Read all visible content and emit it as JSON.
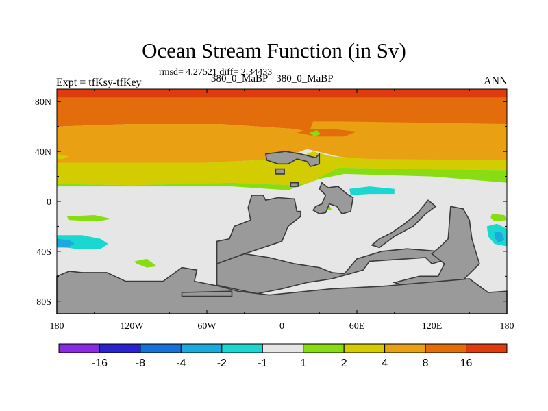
{
  "chart_data": {
    "type": "heatmap",
    "title": "Ocean Stream Function (in Sv)",
    "stats": "rmsd= 4.27521 diff= 2.34433",
    "left_label": "Expt = tfKsy-tfKey",
    "center_label": "380_0_MaBP - 380_0_MaBP",
    "right_label": "ANN",
    "x_range": [
      -180,
      180
    ],
    "y_range": [
      -90,
      90
    ],
    "x_ticks": [
      {
        "value": -180,
        "label": "180"
      },
      {
        "value": -120,
        "label": "120W"
      },
      {
        "value": -60,
        "label": "60W"
      },
      {
        "value": 0,
        "label": "0"
      },
      {
        "value": 60,
        "label": "60E"
      },
      {
        "value": 120,
        "label": "120E"
      },
      {
        "value": 180,
        "label": "180"
      }
    ],
    "y_ticks": [
      {
        "value": 80,
        "label": "80N"
      },
      {
        "value": 40,
        "label": "40N"
      },
      {
        "value": 0,
        "label": "0"
      },
      {
        "value": -40,
        "label": "40S"
      },
      {
        "value": -80,
        "label": "80S"
      }
    ],
    "colorbar": {
      "colors": [
        "#8a2be2",
        "#2a22cf",
        "#1670d8",
        "#1aaadd",
        "#1ad8d0",
        "#e6e6e6",
        "#88dd12",
        "#d2cc00",
        "#e9a013",
        "#e36d0a",
        "#e03a0f"
      ],
      "labels": [
        "-16",
        "-8",
        "-4",
        "-2",
        "-1",
        "1",
        "2",
        "4",
        "8",
        "16"
      ]
    },
    "land_color": "#9a9a9a",
    "regions": [
      {
        "name": "arctic-red-band",
        "color": "#e03a0f",
        "points": [
          [
            -180,
            90
          ],
          [
            180,
            90
          ],
          [
            180,
            83
          ],
          [
            -180,
            83
          ]
        ]
      },
      {
        "name": "north-orange-region",
        "color": "#e36d0a",
        "points": [
          [
            -180,
            83
          ],
          [
            180,
            83
          ],
          [
            180,
            38
          ],
          [
            72,
            38
          ],
          [
            40,
            44
          ],
          [
            25,
            50
          ],
          [
            10,
            58
          ],
          [
            -50,
            62
          ],
          [
            -120,
            62
          ],
          [
            -180,
            60
          ]
        ]
      },
      {
        "name": "north-amber-region",
        "color": "#e9a013",
        "points": [
          [
            -180,
            60
          ],
          [
            -120,
            62
          ],
          [
            -50,
            62
          ],
          [
            10,
            58
          ],
          [
            22,
            56
          ],
          [
            25,
            64
          ],
          [
            50,
            64
          ],
          [
            180,
            62
          ],
          [
            180,
            33
          ],
          [
            70,
            33
          ],
          [
            45,
            36
          ],
          [
            20,
            42
          ],
          [
            0,
            34
          ],
          [
            -60,
            31
          ],
          [
            -180,
            31
          ]
        ]
      },
      {
        "name": "north-yellow-region",
        "color": "#d2cc00",
        "points": [
          [
            -180,
            31
          ],
          [
            -60,
            31
          ],
          [
            0,
            34
          ],
          [
            15,
            36
          ],
          [
            25,
            40
          ],
          [
            40,
            36
          ],
          [
            70,
            34
          ],
          [
            180,
            33
          ],
          [
            180,
            25
          ],
          [
            100,
            26
          ],
          [
            45,
            27
          ],
          [
            22,
            15
          ],
          [
            8,
            13
          ],
          [
            -40,
            15
          ],
          [
            -120,
            13
          ],
          [
            -180,
            14
          ]
        ]
      },
      {
        "name": "north-green-band",
        "color": "#88dd12",
        "points": [
          [
            -180,
            14
          ],
          [
            -120,
            13
          ],
          [
            -40,
            15
          ],
          [
            8,
            13
          ],
          [
            22,
            15
          ],
          [
            45,
            27
          ],
          [
            100,
            26
          ],
          [
            180,
            25
          ],
          [
            180,
            15
          ],
          [
            120,
            20
          ],
          [
            50,
            22
          ],
          [
            30,
            18
          ],
          [
            5,
            9
          ],
          [
            -40,
            12
          ],
          [
            -180,
            12
          ]
        ]
      },
      {
        "name": "orange-notch-east",
        "color": "#e36d0a",
        "points": [
          [
            12,
            55
          ],
          [
            28,
            52
          ],
          [
            50,
            52
          ],
          [
            60,
            56
          ],
          [
            40,
            58
          ],
          [
            20,
            58
          ]
        ]
      },
      {
        "name": "yellow-notch-west",
        "color": "#d2cc00",
        "points": [
          [
            -180,
            38
          ],
          [
            -170,
            36
          ],
          [
            -175,
            34
          ],
          [
            -180,
            34
          ]
        ]
      },
      {
        "name": "green-blob-north",
        "color": "#88dd12",
        "points": [
          [
            22,
            55
          ],
          [
            28,
            57
          ],
          [
            31,
            54
          ],
          [
            26,
            52
          ]
        ]
      },
      {
        "name": "cyan-blob-africa",
        "color": "#1ad8d0",
        "points": [
          [
            54,
            10
          ],
          [
            70,
            12
          ],
          [
            90,
            10
          ],
          [
            90,
            6
          ],
          [
            70,
            6
          ],
          [
            55,
            5
          ]
        ]
      },
      {
        "name": "cyan-blob-southwest",
        "color": "#1ad8d0",
        "points": [
          [
            -180,
            -27
          ],
          [
            -160,
            -27
          ],
          [
            -145,
            -30
          ],
          [
            -139,
            -34
          ],
          [
            -145,
            -38
          ],
          [
            -165,
            -38
          ],
          [
            -180,
            -36
          ]
        ]
      },
      {
        "name": "blue-core-southwest",
        "color": "#1aaadd",
        "points": [
          [
            -180,
            -30
          ],
          [
            -170,
            -31
          ],
          [
            -166,
            -34
          ],
          [
            -172,
            -37
          ],
          [
            -180,
            -37
          ]
        ]
      },
      {
        "name": "cyan-blob-southeast",
        "color": "#1ad8d0",
        "points": [
          [
            164,
            -20
          ],
          [
            172,
            -18
          ],
          [
            180,
            -22
          ],
          [
            180,
            -36
          ],
          [
            170,
            -34
          ],
          [
            165,
            -28
          ]
        ]
      },
      {
        "name": "blue-core-southeast",
        "color": "#1aaadd",
        "points": [
          [
            170,
            -24
          ],
          [
            176,
            -25
          ],
          [
            178,
            -31
          ],
          [
            173,
            -33
          ],
          [
            170,
            -29
          ]
        ]
      },
      {
        "name": "green-blob-west-pacific",
        "color": "#88dd12",
        "points": [
          [
            -172,
            -12
          ],
          [
            -150,
            -11
          ],
          [
            -136,
            -14
          ],
          [
            -148,
            -16
          ],
          [
            -170,
            -15
          ]
        ]
      },
      {
        "name": "green-blob-south-atlantic",
        "color": "#88dd12",
        "points": [
          [
            -118,
            -48
          ],
          [
            -108,
            -46
          ],
          [
            -100,
            -52
          ],
          [
            -108,
            -53
          ],
          [
            -116,
            -50
          ]
        ]
      },
      {
        "name": "green-blob-africa-east",
        "color": "#88dd12",
        "points": [
          [
            30,
            -3
          ],
          [
            38,
            -3
          ],
          [
            40,
            -7
          ],
          [
            32,
            -7
          ]
        ]
      },
      {
        "name": "green-blob-east-pacific",
        "color": "#88dd12",
        "points": [
          [
            168,
            -10
          ],
          [
            178,
            -11
          ],
          [
            180,
            -15
          ],
          [
            170,
            -16
          ],
          [
            167,
            -13
          ]
        ]
      }
    ],
    "landmasses": [
      {
        "name": "north-continent",
        "points": [
          [
            -13,
            38
          ],
          [
            3,
            40
          ],
          [
            15,
            38
          ],
          [
            27,
            35
          ],
          [
            30,
            38
          ],
          [
            30,
            30
          ],
          [
            23,
            28
          ],
          [
            20,
            32
          ],
          [
            12,
            34
          ],
          [
            5,
            30
          ],
          [
            -3,
            30
          ],
          [
            -12,
            33
          ]
        ]
      },
      {
        "name": "north-islet-1",
        "points": [
          [
            -5,
            26
          ],
          [
            2,
            26
          ],
          [
            2,
            22
          ],
          [
            -5,
            22
          ]
        ]
      },
      {
        "name": "north-islet-2",
        "points": [
          [
            7,
            15
          ],
          [
            13,
            15
          ],
          [
            13,
            12
          ],
          [
            7,
            12
          ]
        ]
      },
      {
        "name": "west-continent",
        "points": [
          [
            -24,
            5
          ],
          [
            -15,
            5
          ],
          [
            -13,
            1
          ],
          [
            -3,
            3
          ],
          [
            10,
            2
          ],
          [
            12,
            -8
          ],
          [
            15,
            -8
          ],
          [
            15,
            -12
          ],
          [
            5,
            -20
          ],
          [
            0,
            -32
          ],
          [
            -30,
            -42
          ],
          [
            -52,
            -50
          ],
          [
            -52,
            -32
          ],
          [
            -42,
            -30
          ],
          [
            -38,
            -20
          ],
          [
            -25,
            -15
          ],
          [
            -27,
            -5
          ]
        ]
      },
      {
        "name": "africa-continent",
        "points": [
          [
            32,
            15
          ],
          [
            37,
            11
          ],
          [
            45,
            12
          ],
          [
            52,
            6
          ],
          [
            57,
            3
          ],
          [
            55,
            -8
          ],
          [
            48,
            -10
          ],
          [
            44,
            -4
          ],
          [
            38,
            -2
          ],
          [
            35,
            -9
          ],
          [
            30,
            -10
          ],
          [
            25,
            -7
          ],
          [
            27,
            -4
          ],
          [
            32,
            -2
          ],
          [
            35,
            5
          ],
          [
            30,
            10
          ]
        ]
      },
      {
        "name": "south-continent",
        "points": [
          [
            -52,
            -50
          ],
          [
            -30,
            -42
          ],
          [
            -10,
            -45
          ],
          [
            10,
            -50
          ],
          [
            30,
            -53
          ],
          [
            40,
            -57
          ],
          [
            50,
            -58
          ],
          [
            60,
            -46
          ],
          [
            80,
            -40
          ],
          [
            100,
            -38
          ],
          [
            125,
            -40
          ],
          [
            130,
            -47
          ],
          [
            120,
            -50
          ],
          [
            115,
            -45
          ],
          [
            100,
            -46
          ],
          [
            70,
            -48
          ],
          [
            65,
            -55
          ],
          [
            40,
            -62
          ],
          [
            20,
            -65
          ],
          [
            0,
            -70
          ],
          [
            -20,
            -74
          ],
          [
            -52,
            -67
          ]
        ]
      },
      {
        "name": "east-continent",
        "points": [
          [
            72,
            -35
          ],
          [
            78,
            -30
          ],
          [
            88,
            -25
          ],
          [
            98,
            -18
          ],
          [
            108,
            -10
          ],
          [
            117,
            1
          ],
          [
            123,
            -4
          ],
          [
            115,
            -10
          ],
          [
            105,
            -20
          ],
          [
            90,
            -28
          ],
          [
            78,
            -37
          ]
        ]
      },
      {
        "name": "southeast-continent",
        "points": [
          [
            120,
            -42
          ],
          [
            128,
            -35
          ],
          [
            133,
            -30
          ],
          [
            135,
            -4
          ],
          [
            145,
            -6
          ],
          [
            150,
            -15
          ],
          [
            152,
            -30
          ],
          [
            158,
            -50
          ],
          [
            145,
            -63
          ],
          [
            130,
            -70
          ],
          [
            100,
            -68
          ],
          [
            90,
            -65
          ],
          [
            110,
            -60
          ],
          [
            125,
            -60
          ],
          [
            130,
            -50
          ]
        ]
      },
      {
        "name": "antarctic-land",
        "points": [
          [
            -180,
            -60
          ],
          [
            -170,
            -56
          ],
          [
            -160,
            -57
          ],
          [
            -140,
            -57
          ],
          [
            -125,
            -64
          ],
          [
            -95,
            -64
          ],
          [
            -80,
            -53
          ],
          [
            -68,
            -55
          ],
          [
            -70,
            -64
          ],
          [
            -50,
            -68
          ],
          [
            -35,
            -72
          ],
          [
            -10,
            -75
          ],
          [
            40,
            -70
          ],
          [
            80,
            -68
          ],
          [
            150,
            -62
          ],
          [
            165,
            -73
          ],
          [
            180,
            -72
          ],
          [
            180,
            -90
          ],
          [
            -180,
            -90
          ]
        ]
      },
      {
        "name": "south-strip",
        "points": [
          [
            -80,
            -73
          ],
          [
            -40,
            -72
          ],
          [
            -40,
            -76
          ],
          [
            -80,
            -76
          ]
        ]
      }
    ]
  }
}
